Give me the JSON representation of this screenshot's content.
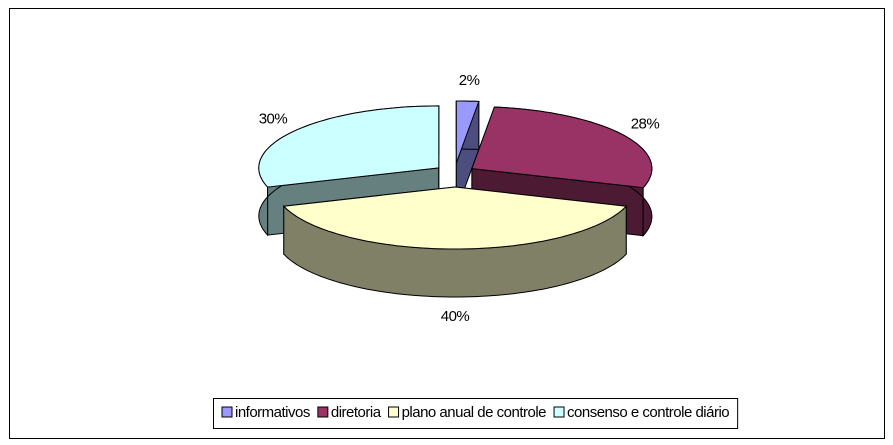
{
  "chart_data": {
    "type": "pie",
    "categories": [
      "informativos",
      "diretoria",
      "plano anual de controle",
      "consenso e controle diário"
    ],
    "values": [
      2,
      28,
      40,
      30
    ],
    "value_labels": [
      "2%",
      "28%",
      "40%",
      "30%"
    ],
    "colors": [
      "#9999ff",
      "#993366",
      "#ffffcc",
      "#ccffff"
    ],
    "legend": "bottom"
  }
}
